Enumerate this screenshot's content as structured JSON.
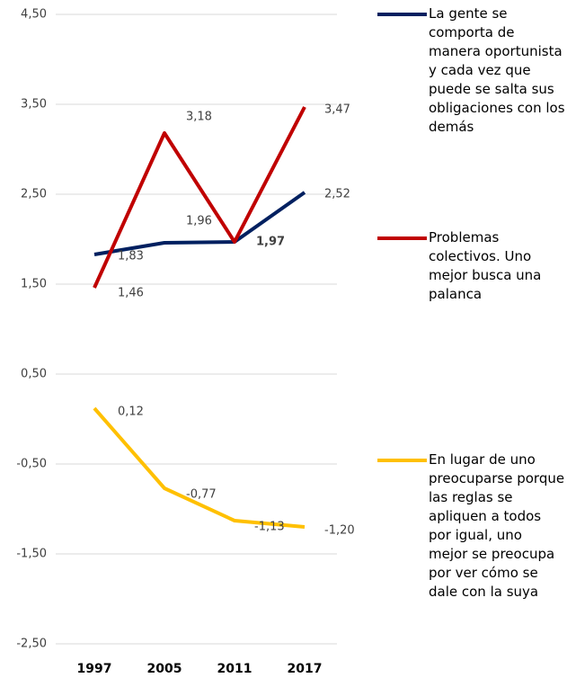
{
  "chart_data": {
    "type": "line",
    "categories": [
      "1997",
      "2005",
      "2011",
      "2017"
    ],
    "series": [
      {
        "name": "La gente se comporta de manera oportunista y cada vez que puede se salta sus obligaciones con los demás",
        "color": "#002060",
        "values": [
          1.83,
          1.96,
          1.97,
          2.52
        ],
        "value_labels": [
          "1,83",
          "1,96",
          "1,97",
          "2,52"
        ]
      },
      {
        "name": "Problemas colectivos. Uno mejor busca una palanca",
        "color": "#c00000",
        "values": [
          1.46,
          3.18,
          1.97,
          3.47
        ],
        "value_labels": [
          "1,46",
          "3,18",
          null,
          "3,47"
        ]
      },
      {
        "name": "En lugar de uno preocuparse porque las reglas se apliquen a todos por igual, uno mejor se preocupa por ver cómo se dale con la suya",
        "color": "#ffc000",
        "values": [
          0.12,
          -0.77,
          -1.13,
          -1.2
        ],
        "value_labels": [
          "0,12",
          "-0,77",
          "-1,13",
          "-1,20"
        ]
      }
    ],
    "ylim": [
      -2.5,
      4.5
    ],
    "yticks": [
      {
        "value": -2.5,
        "label": "-2,50"
      },
      {
        "value": -1.5,
        "label": "-1,50"
      },
      {
        "value": -0.5,
        "label": "-0,50"
      },
      {
        "value": 0.5,
        "label": "0,50"
      },
      {
        "value": 1.5,
        "label": "1,50"
      },
      {
        "value": 2.5,
        "label": "2,50"
      },
      {
        "value": 3.5,
        "label": "3,50"
      },
      {
        "value": 4.5,
        "label": "4,50"
      }
    ],
    "grid": true
  }
}
